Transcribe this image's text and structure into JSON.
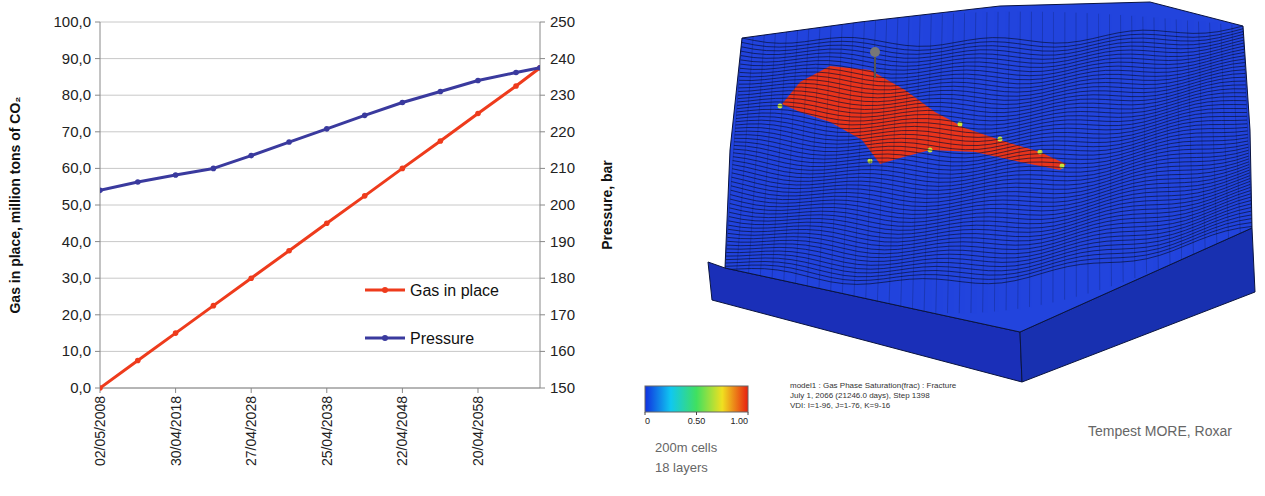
{
  "chart_data": {
    "type": "line",
    "x": [
      "2008-05-02",
      "2013-05-01",
      "2018-04-30",
      "2023-05-01",
      "2028-04-27",
      "2033-05-01",
      "2038-04-25",
      "2043-05-01",
      "2048-04-22",
      "2053-05-01",
      "2058-04-20",
      "2063-05-01",
      "2066-07-01"
    ],
    "series": [
      {
        "name": "Gas in place",
        "color": "#ee3b1c",
        "marker": "circle",
        "axis": "y",
        "values": [
          0,
          7.5,
          15,
          22.5,
          30,
          37.5,
          45,
          52.5,
          60,
          67.5,
          75,
          82.5,
          87.5
        ]
      },
      {
        "name": "Pressure",
        "color": "#3a3a9e",
        "marker": "circle",
        "axis": "y2",
        "values": [
          204,
          206.3,
          208.2,
          210,
          213.5,
          217.2,
          220.8,
          224.5,
          228,
          231,
          234,
          236.2,
          237.5
        ]
      }
    ],
    "xlim": [
      "2008-05-02",
      "2066-07-01"
    ],
    "xticks": [
      {
        "value": "2008-05-02",
        "label": "02/05/2008"
      },
      {
        "value": "2018-04-30",
        "label": "30/04/2018"
      },
      {
        "value": "2028-04-27",
        "label": "27/04/2028"
      },
      {
        "value": "2038-04-25",
        "label": "25/04/2038"
      },
      {
        "value": "2048-04-22",
        "label": "22/04/2048"
      },
      {
        "value": "2058-04-20",
        "label": "20/04/2058"
      }
    ],
    "ylim": [
      0,
      100
    ],
    "yticks": [
      {
        "value": 0,
        "label": "0,0"
      },
      {
        "value": 10,
        "label": "10,0"
      },
      {
        "value": 20,
        "label": "20,0"
      },
      {
        "value": 30,
        "label": "30,0"
      },
      {
        "value": 40,
        "label": "40,0"
      },
      {
        "value": 50,
        "label": "50,0"
      },
      {
        "value": 60,
        "label": "60,0"
      },
      {
        "value": 70,
        "label": "70,0"
      },
      {
        "value": 80,
        "label": "80,0"
      },
      {
        "value": 90,
        "label": "90,0"
      },
      {
        "value": 100,
        "label": "100,0"
      }
    ],
    "y2lim": [
      150,
      250
    ],
    "y2ticks": [
      150,
      160,
      170,
      180,
      190,
      200,
      210,
      220,
      230,
      240,
      250
    ],
    "y_label": "Gas in place, million tons of CO₂",
    "y2_label": "Pressure, bar",
    "grid": true,
    "legend": "lower right"
  },
  "model_view": {
    "caption": [
      "model1 : Gas Phase Saturation(frac) : Fracture",
      "July 1, 2066 (21246.0 days), Step 1398",
      "VDI: I=1-96, J=1-76, K=9-16"
    ],
    "software": "Tempest MORE, Roxar",
    "grid_notes": [
      "200m cells",
      "18 layers"
    ],
    "colorbar": {
      "range": [
        0,
        1
      ],
      "ticks": [
        0,
        {
          "value": 0.5,
          "label": "0.50"
        },
        {
          "value": 1,
          "label": "1.00"
        }
      ]
    }
  }
}
